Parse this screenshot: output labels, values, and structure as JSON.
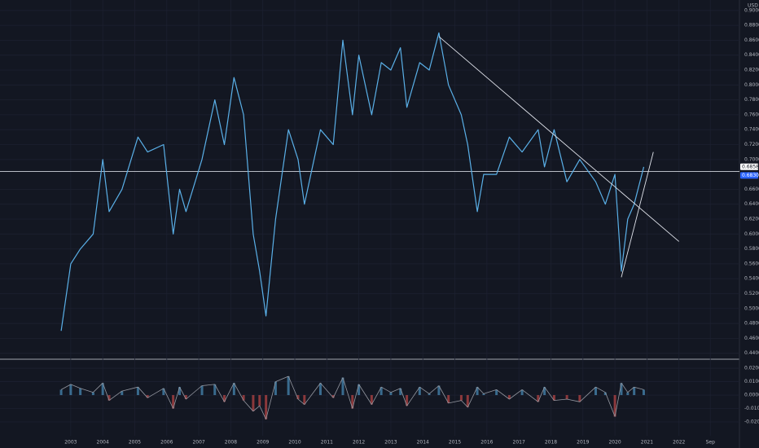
{
  "chart_data": {
    "type": "line",
    "currency": "USD",
    "x": [
      2002.7,
      2003.0,
      2003.3,
      2003.7,
      2004.0,
      2004.2,
      2004.6,
      2005.1,
      2005.4,
      2005.9,
      2006.2,
      2006.4,
      2006.6,
      2007.1,
      2007.5,
      2007.8,
      2008.1,
      2008.4,
      2008.7,
      2008.9,
      2009.1,
      2009.4,
      2009.8,
      2010.1,
      2010.3,
      2010.8,
      2011.2,
      2011.5,
      2011.8,
      2012.0,
      2012.4,
      2012.7,
      2013.0,
      2013.3,
      2013.5,
      2013.9,
      2014.2,
      2014.5,
      2014.8,
      2015.2,
      2015.4,
      2015.7,
      2015.9,
      2016.3,
      2016.7,
      2017.1,
      2017.6,
      2017.8,
      2018.1,
      2018.5,
      2018.9,
      2019.4,
      2019.7,
      2020.0,
      2020.2,
      2020.4,
      2020.6,
      2020.9
    ],
    "series": [
      {
        "color": "#5ab0e8",
        "values": [
          0.47,
          0.56,
          0.58,
          0.6,
          0.7,
          0.63,
          0.66,
          0.73,
          0.71,
          0.72,
          0.6,
          0.66,
          0.63,
          0.7,
          0.78,
          0.72,
          0.81,
          0.76,
          0.6,
          0.55,
          0.49,
          0.62,
          0.74,
          0.7,
          0.64,
          0.74,
          0.72,
          0.86,
          0.76,
          0.84,
          0.76,
          0.83,
          0.82,
          0.85,
          0.77,
          0.83,
          0.82,
          0.87,
          0.8,
          0.76,
          0.72,
          0.63,
          0.68,
          0.68,
          0.73,
          0.71,
          0.74,
          0.69,
          0.74,
          0.67,
          0.7,
          0.67,
          0.64,
          0.68,
          0.55,
          0.62,
          0.64,
          0.69
        ]
      },
      {
        "axis": "y2",
        "color": "#9598a1",
        "values": [
          0.004,
          0.008,
          0.005,
          0.002,
          0.009,
          -0.004,
          0.003,
          0.006,
          -0.002,
          0.005,
          -0.01,
          0.006,
          -0.003,
          0.007,
          0.008,
          -0.005,
          0.009,
          -0.004,
          -0.012,
          -0.008,
          -0.018,
          0.01,
          0.014,
          -0.003,
          -0.007,
          0.009,
          -0.002,
          0.013,
          -0.01,
          0.008,
          -0.007,
          0.006,
          0.002,
          0.005,
          -0.008,
          0.006,
          0.001,
          0.007,
          -0.006,
          -0.004,
          -0.009,
          0.006,
          0.001,
          0.004,
          -0.003,
          0.004,
          -0.005,
          0.006,
          -0.004,
          -0.003,
          -0.005,
          0.006,
          0.002,
          -0.016,
          0.009,
          0.002,
          0.006,
          0.004
        ]
      }
    ],
    "trendlines": [
      {
        "x": [
          2014.5,
          2022.0
        ],
        "values": [
          0.865,
          0.59
        ]
      },
      {
        "x": [
          2020.2,
          2021.2
        ],
        "values": [
          0.542,
          0.71
        ]
      }
    ],
    "price_line": 0.684,
    "price_labels": [
      {
        "value": 0.6858,
        "label": "0.68580"
      },
      {
        "value": 0.683,
        "label": "0.68300"
      }
    ],
    "xlim": [
      2000.79,
      2023.89
    ],
    "xticks": [
      2003,
      2004,
      2005,
      2006,
      2007,
      2008,
      2009,
      2010,
      2011,
      2012,
      2013,
      2014,
      2015,
      2016,
      2017,
      2018,
      2019,
      2020,
      2021,
      2022,
      {
        "value": 2022.98,
        "label": "Sep"
      }
    ],
    "ylim": [
      0.432,
      0.914
    ],
    "yticks": [
      {
        "value": 0.9,
        "label": "0.90000"
      },
      {
        "value": 0.88,
        "label": "0.88000"
      },
      {
        "value": 0.86,
        "label": "0.86000"
      },
      {
        "value": 0.84,
        "label": "0.84000"
      },
      {
        "value": 0.82,
        "label": "0.82000"
      },
      {
        "value": 0.8,
        "label": "0.80000"
      },
      {
        "value": 0.78,
        "label": "0.78000"
      },
      {
        "value": 0.76,
        "label": "0.76000"
      },
      {
        "value": 0.74,
        "label": "0.74000"
      },
      {
        "value": 0.72,
        "label": "0.72000"
      },
      {
        "value": 0.7,
        "label": "0.70000"
      },
      {
        "value": 0.66,
        "label": "0.66000"
      },
      {
        "value": 0.64,
        "label": "0.64000"
      },
      {
        "value": 0.62,
        "label": "0.62000"
      },
      {
        "value": 0.6,
        "label": "0.60000"
      },
      {
        "value": 0.58,
        "label": "0.58000"
      },
      {
        "value": 0.56,
        "label": "0.56000"
      },
      {
        "value": 0.54,
        "label": "0.54000"
      },
      {
        "value": 0.52,
        "label": "0.52000"
      },
      {
        "value": 0.5,
        "label": "0.50000"
      },
      {
        "value": 0.48,
        "label": "0.48000"
      },
      {
        "value": 0.46,
        "label": "0.46000"
      },
      {
        "value": 0.44,
        "label": "0.44000"
      }
    ],
    "y2lim": [
      -0.0303,
      0.0255
    ],
    "y2ticks": [
      {
        "value": 0.02,
        "label": "0.02000"
      },
      {
        "value": 0.01,
        "label": "0.01000"
      },
      {
        "value": 0,
        "label": "0.00000"
      },
      {
        "value": -0.01,
        "label": "-0.01000"
      },
      {
        "value": -0.02,
        "label": "-0.02000"
      }
    ],
    "grid": true
  }
}
